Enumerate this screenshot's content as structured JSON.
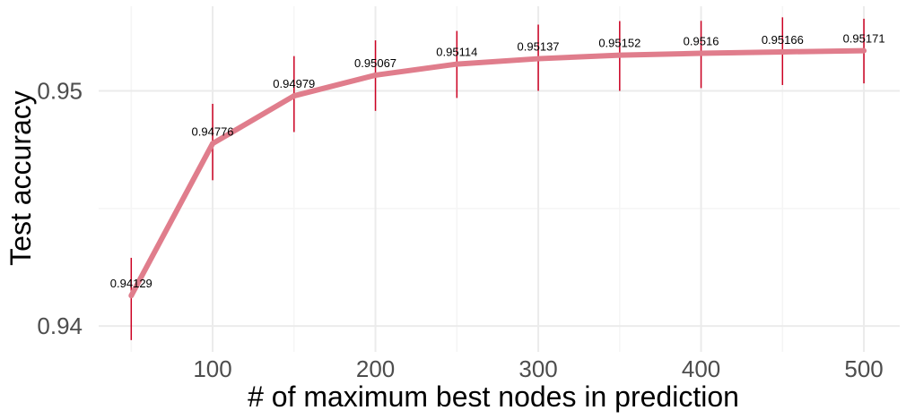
{
  "chart_data": {
    "type": "line",
    "title": "",
    "xlabel": "# of maximum best nodes in prediction",
    "ylabel": "Test accuracy",
    "x": [
      50,
      100,
      150,
      200,
      250,
      300,
      350,
      400,
      450,
      500
    ],
    "series": [
      {
        "values": [
          0.94129,
          0.94776,
          0.94979,
          0.95067,
          0.95114,
          0.95137,
          0.95152,
          0.9516,
          0.95166,
          0.95171
        ],
        "labels": [
          "0.94129",
          "0.94776",
          "0.94979",
          "0.95067",
          "0.95114",
          "0.95137",
          "0.95152",
          "0.9516",
          "0.95166",
          "0.95171"
        ],
        "error_low": [
          0.9394,
          0.9462,
          0.94825,
          0.94915,
          0.9497,
          0.95,
          0.95,
          0.95012,
          0.95025,
          0.95032
        ],
        "error_high": [
          0.9429,
          0.94945,
          0.95148,
          0.95215,
          0.95255,
          0.95282,
          0.95297,
          0.95298,
          0.95313,
          0.95307
        ]
      }
    ],
    "xlim": [
      30,
      522
    ],
    "ylim": [
      0.9389,
      0.9536
    ],
    "x_ticks": [
      100,
      200,
      300,
      400,
      500
    ],
    "x_tick_labels": [
      "100",
      "200",
      "300",
      "400",
      "500"
    ],
    "y_ticks": [
      0.94,
      0.95
    ],
    "y_tick_labels": [
      "0.94",
      "0.95"
    ],
    "x_minor_ticks": [
      50,
      150,
      250,
      350,
      450
    ],
    "y_minor_ticks": [
      0.945
    ],
    "grid": true,
    "legend": "none",
    "colors": {
      "line": "#e07d8c",
      "error_bar": "#cc0022",
      "grid_major": "#ebebeb",
      "grid_minor": "#f5f5f5"
    }
  }
}
